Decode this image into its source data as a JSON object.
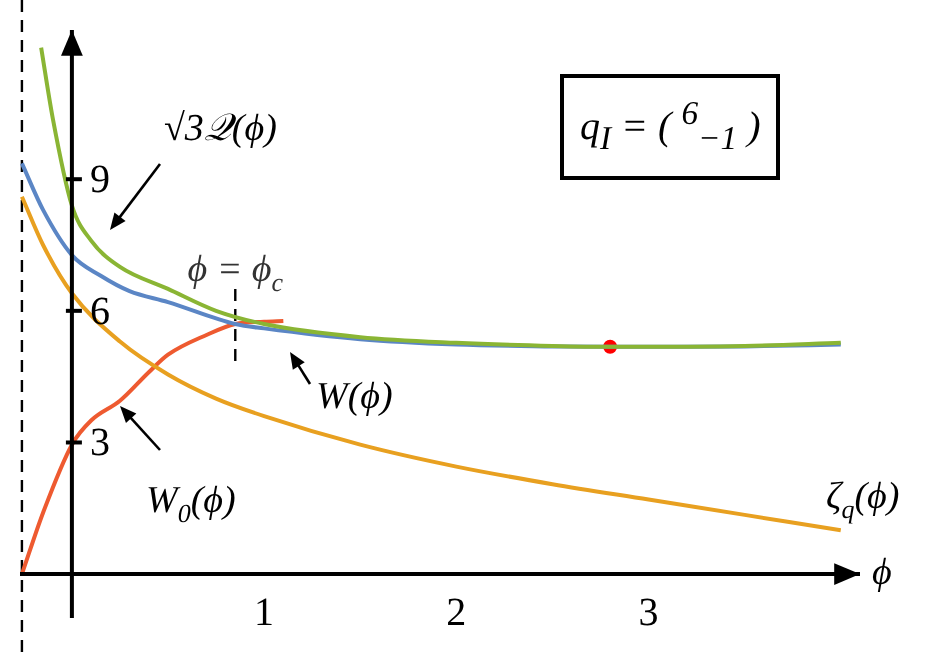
{
  "chart_data": {
    "type": "line",
    "series": [
      {
        "color": "#8ab534",
        "x": [
          -0.16,
          -0.1,
          0,
          0.1,
          0.25,
          0.5,
          0.75,
          1,
          1.5,
          2,
          2.5,
          2.8,
          3.5,
          4
        ],
        "values": [
          12.0,
          10.4,
          8.4,
          7.6,
          7.0,
          6.5,
          6.0,
          5.7,
          5.4,
          5.27,
          5.2,
          5.18,
          5.2,
          5.27
        ]
      },
      {
        "color": "#5b86c5",
        "x": [
          -0.26,
          -0.15,
          0,
          0.15,
          0.3,
          0.5,
          0.85,
          1,
          1.5,
          2,
          2.5,
          2.8,
          3.5,
          4
        ],
        "values": [
          9.36,
          8.3,
          7.27,
          6.8,
          6.45,
          6.2,
          5.7,
          5.6,
          5.35,
          5.23,
          5.19,
          5.18,
          5.19,
          5.23
        ]
      },
      {
        "color": "#e8a020",
        "x": [
          -0.26,
          -0.15,
          0,
          0.25,
          0.5,
          0.75,
          1,
          1.5,
          2,
          2.5,
          3,
          3.5,
          4
        ],
        "values": [
          8.6,
          7.5,
          6.4,
          5.3,
          4.55,
          4.0,
          3.6,
          2.95,
          2.45,
          2.05,
          1.7,
          1.35,
          1.0
        ]
      },
      {
        "color": "#ee5a30",
        "x": [
          -0.26,
          -0.15,
          0,
          0.1,
          0.25,
          0.4,
          0.5,
          0.7,
          0.85,
          1,
          1.1
        ],
        "values": [
          0,
          1.4,
          2.95,
          3.5,
          3.95,
          4.6,
          5.0,
          5.45,
          5.7,
          5.75,
          5.77
        ]
      },
      {
        "type": "scatter",
        "color": "#ff0000",
        "x": [
          2.8
        ],
        "values": [
          5.18
        ]
      }
    ],
    "xlim": [
      -0.27,
      4.1
    ],
    "ylim": [
      -1,
      12.4
    ],
    "xticks": [
      1,
      2,
      3
    ],
    "yticks": [
      3,
      6,
      9
    ],
    "xlabel": "ϕ",
    "grid": false,
    "legend": false,
    "line_style": "solid",
    "ref_lines": [
      {
        "axis": "x",
        "value": -0.26,
        "line_style": "dashed",
        "color": "#000000"
      },
      {
        "axis": "x",
        "value": 0.85,
        "label": "ϕ = ϕ$_{c}$",
        "line_style": "dashed",
        "color": "#000000"
      }
    ],
    "annotations": [
      "√3𝒬(ϕ)",
      "W(ϕ)",
      "ζ$_{q}$(ϕ)",
      "W$_{0}$(ϕ)",
      "q$_{I}$ = ( $^{6}$$_{−1}$ )"
    ]
  }
}
